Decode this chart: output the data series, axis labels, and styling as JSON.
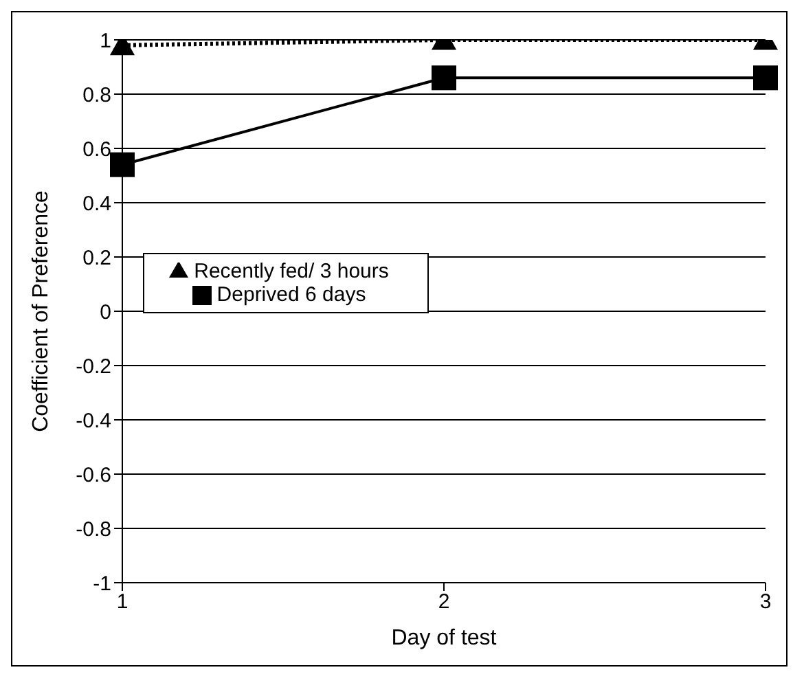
{
  "chart_data": {
    "type": "line",
    "xlabel": "Day of test",
    "ylabel": "Coefficient of Preference",
    "categories": [
      "1",
      "2",
      "3"
    ],
    "series": [
      {
        "name": "Recently fed/ 3 hours",
        "color": "#000000",
        "values": [
          0.98,
          1,
          1
        ],
        "marker": "triangle",
        "line_style": "dotted"
      },
      {
        "name": "Deprived 6 days",
        "color": "#000000",
        "values": [
          0.54,
          0.86,
          0.86
        ],
        "marker": "square",
        "line_style": "solid"
      }
    ],
    "ylim": [
      -1,
      1
    ],
    "yticks": [
      -1,
      -0.8,
      -0.6,
      -0.4,
      -0.2,
      0,
      0.2,
      0.4,
      0.6,
      0.8,
      1
    ],
    "grid": "y",
    "legend": "left"
  }
}
